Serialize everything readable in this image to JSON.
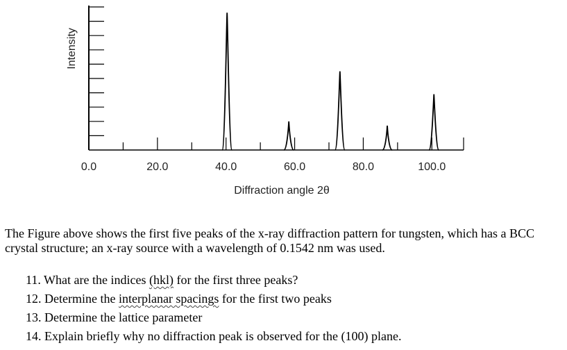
{
  "chart_data": {
    "type": "line",
    "ylabel": "Intensity",
    "xlabel": "Diffraction angle 2θ",
    "xlim": [
      0,
      105
    ],
    "ylim": [
      0,
      1
    ],
    "x_ticks": [
      0,
      20,
      40,
      60,
      80,
      100
    ],
    "x_tick_labels": [
      "0.0",
      "20.0",
      "40.0",
      "60.0",
      "80.0",
      "100.0"
    ],
    "grid": false,
    "legend": "none",
    "peaks": [
      {
        "x": 40.3,
        "y": 0.96
      },
      {
        "x": 58.3,
        "y": 0.2
      },
      {
        "x": 73.2,
        "y": 0.55
      },
      {
        "x": 87.0,
        "y": 0.17
      },
      {
        "x": 100.6,
        "y": 0.39
      }
    ]
  },
  "problem": {
    "text": "The Figure above shows the first five peaks of the x-ray diffraction pattern for tungsten, which has a BCC crystal structure; an x-ray source with a wavelength of 0.1542 nm was used.",
    "questions": [
      {
        "num": "11.",
        "pre": "What are the indices ",
        "u": "(hkl)",
        "post": " for the first three peaks?"
      },
      {
        "num": "12.",
        "pre": "Determine the ",
        "u": "interplanar spacings",
        "post": " for the first two peaks"
      },
      {
        "num": "13.",
        "pre": "Determine the lattice parameter",
        "u": "",
        "post": ""
      },
      {
        "num": "14.",
        "pre": "Explain briefly why no diffraction peak is observed for the (100) plane.",
        "u": "",
        "post": ""
      }
    ]
  }
}
